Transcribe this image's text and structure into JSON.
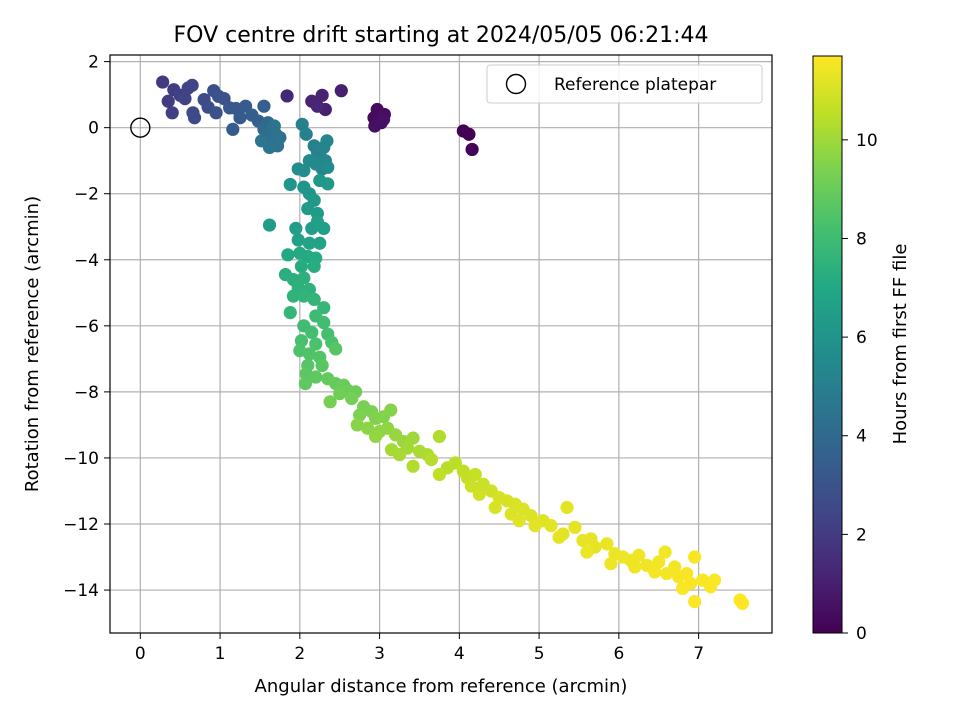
{
  "chart_data": {
    "type": "scatter",
    "title": "FOV centre drift starting at 2024/05/05 06:21:44",
    "xlabel": "Angular distance from reference (arcmin)",
    "ylabel": "Rotation from reference (arcmin)",
    "xlim": [
      -0.38,
      7.92
    ],
    "ylim": [
      -15.3,
      2.2
    ],
    "xticks": [
      0,
      1,
      2,
      3,
      4,
      5,
      6,
      7
    ],
    "yticks": [
      2,
      0,
      -2,
      -4,
      -6,
      -8,
      -10,
      -12,
      -14
    ],
    "grid": true,
    "legend": {
      "position": "top-right",
      "entries": [
        "Reference platepar"
      ]
    },
    "reference_point": {
      "x": 0,
      "y": 0
    },
    "colorbar": {
      "label": "Hours from first FF file",
      "range": [
        0,
        11.7
      ],
      "ticks": [
        0,
        2,
        4,
        6,
        8,
        10
      ],
      "colormap": "viridis"
    },
    "series": [
      {
        "values": [
          {
            "x": 4.05,
            "y": -0.1,
            "h": 0.0
          },
          {
            "x": 4.12,
            "y": -0.2,
            "h": 0.05
          },
          {
            "x": 4.16,
            "y": -0.66,
            "h": 0.1
          },
          {
            "x": 2.93,
            "y": 0.3,
            "h": 0.3
          },
          {
            "x": 2.97,
            "y": 0.55,
            "h": 0.35
          },
          {
            "x": 3.02,
            "y": 0.15,
            "h": 0.4
          },
          {
            "x": 3.06,
            "y": 0.4,
            "h": 0.45
          },
          {
            "x": 2.94,
            "y": 0.05,
            "h": 0.5
          },
          {
            "x": 3.05,
            "y": 0.25,
            "h": 0.55
          },
          {
            "x": 2.52,
            "y": 1.12,
            "h": 1.0
          },
          {
            "x": 2.32,
            "y": 0.55,
            "h": 1.05
          },
          {
            "x": 2.28,
            "y": 0.98,
            "h": 1.1
          },
          {
            "x": 2.15,
            "y": 0.8,
            "h": 1.15
          },
          {
            "x": 2.22,
            "y": 0.65,
            "h": 1.2
          },
          {
            "x": 1.84,
            "y": 0.96,
            "h": 1.3
          },
          {
            "x": 0.28,
            "y": 1.38,
            "h": 2.0
          },
          {
            "x": 0.35,
            "y": 0.8,
            "h": 2.05
          },
          {
            "x": 0.42,
            "y": 1.15,
            "h": 2.1
          },
          {
            "x": 0.4,
            "y": 0.45,
            "h": 2.15
          },
          {
            "x": 0.5,
            "y": 0.98,
            "h": 2.2
          },
          {
            "x": 0.56,
            "y": 0.88,
            "h": 2.25
          },
          {
            "x": 0.6,
            "y": 1.2,
            "h": 2.3
          },
          {
            "x": 0.65,
            "y": 1.28,
            "h": 2.35
          },
          {
            "x": 0.66,
            "y": 0.45,
            "h": 2.6
          },
          {
            "x": 0.68,
            "y": 0.3,
            "h": 2.65
          },
          {
            "x": 0.8,
            "y": 0.85,
            "h": 2.7
          },
          {
            "x": 0.85,
            "y": 0.62,
            "h": 2.75
          },
          {
            "x": 0.92,
            "y": 1.12,
            "h": 2.8
          },
          {
            "x": 0.98,
            "y": 0.95,
            "h": 2.85
          },
          {
            "x": 0.95,
            "y": 0.45,
            "h": 2.9
          },
          {
            "x": 1.05,
            "y": 0.88,
            "h": 2.95
          },
          {
            "x": 1.12,
            "y": 0.6,
            "h": 3.2
          },
          {
            "x": 1.2,
            "y": 0.58,
            "h": 3.25
          },
          {
            "x": 1.25,
            "y": 0.3,
            "h": 3.3
          },
          {
            "x": 1.32,
            "y": 0.65,
            "h": 3.35
          },
          {
            "x": 1.16,
            "y": -0.05,
            "h": 3.4
          },
          {
            "x": 1.4,
            "y": 0.38,
            "h": 3.45
          },
          {
            "x": 1.48,
            "y": 0.2,
            "h": 3.5
          },
          {
            "x": 1.55,
            "y": 0.65,
            "h": 3.55
          },
          {
            "x": 1.6,
            "y": 0.15,
            "h": 4.0
          },
          {
            "x": 1.55,
            "y": -0.05,
            "h": 4.05
          },
          {
            "x": 1.58,
            "y": -0.35,
            "h": 4.1
          },
          {
            "x": 1.62,
            "y": -0.15,
            "h": 4.15
          },
          {
            "x": 1.66,
            "y": -0.05,
            "h": 4.2
          },
          {
            "x": 1.65,
            "y": -0.45,
            "h": 4.25
          },
          {
            "x": 1.7,
            "y": -0.2,
            "h": 4.3
          },
          {
            "x": 1.72,
            "y": -0.55,
            "h": 4.35
          },
          {
            "x": 1.68,
            "y": 0.05,
            "h": 4.4
          },
          {
            "x": 1.75,
            "y": -0.3,
            "h": 4.45
          },
          {
            "x": 1.62,
            "y": -0.6,
            "h": 4.5
          },
          {
            "x": 1.52,
            "y": -0.4,
            "h": 4.55
          },
          {
            "x": 2.03,
            "y": 0.1,
            "h": 5.0
          },
          {
            "x": 2.08,
            "y": -0.2,
            "h": 5.05
          },
          {
            "x": 2.18,
            "y": -0.55,
            "h": 5.1
          },
          {
            "x": 2.22,
            "y": -0.72,
            "h": 5.15
          },
          {
            "x": 2.26,
            "y": -0.9,
            "h": 5.2
          },
          {
            "x": 2.3,
            "y": -0.6,
            "h": 5.25
          },
          {
            "x": 2.34,
            "y": -0.4,
            "h": 5.3
          },
          {
            "x": 2.32,
            "y": -1.0,
            "h": 5.35
          },
          {
            "x": 2.28,
            "y": -1.25,
            "h": 5.4
          },
          {
            "x": 2.2,
            "y": -1.1,
            "h": 5.45
          },
          {
            "x": 2.12,
            "y": -1.0,
            "h": 5.5
          },
          {
            "x": 2.35,
            "y": -1.2,
            "h": 5.55
          },
          {
            "x": 2.05,
            "y": -1.3,
            "h": 5.6
          },
          {
            "x": 1.98,
            "y": -1.25,
            "h": 5.65
          },
          {
            "x": 1.88,
            "y": -1.72,
            "h": 6.0
          },
          {
            "x": 2.05,
            "y": -1.8,
            "h": 6.05
          },
          {
            "x": 2.12,
            "y": -2.0,
            "h": 6.1
          },
          {
            "x": 2.25,
            "y": -1.6,
            "h": 6.15
          },
          {
            "x": 2.35,
            "y": -1.7,
            "h": 6.2
          },
          {
            "x": 2.18,
            "y": -2.2,
            "h": 6.25
          },
          {
            "x": 2.1,
            "y": -2.45,
            "h": 6.3
          },
          {
            "x": 2.22,
            "y": -2.6,
            "h": 6.35
          },
          {
            "x": 1.62,
            "y": -2.95,
            "h": 6.4
          },
          {
            "x": 1.95,
            "y": -3.05,
            "h": 6.45
          },
          {
            "x": 2.15,
            "y": -3.05,
            "h": 6.5
          },
          {
            "x": 2.22,
            "y": -2.85,
            "h": 6.55
          },
          {
            "x": 2.3,
            "y": -3.05,
            "h": 6.6
          },
          {
            "x": 1.98,
            "y": -3.4,
            "h": 6.65
          },
          {
            "x": 2.12,
            "y": -3.5,
            "h": 6.7
          },
          {
            "x": 2.25,
            "y": -3.5,
            "h": 6.75
          },
          {
            "x": 1.85,
            "y": -3.85,
            "h": 7.0
          },
          {
            "x": 2.0,
            "y": -3.8,
            "h": 7.05
          },
          {
            "x": 2.1,
            "y": -3.9,
            "h": 7.1
          },
          {
            "x": 2.2,
            "y": -3.95,
            "h": 7.15
          },
          {
            "x": 2.02,
            "y": -4.2,
            "h": 7.2
          },
          {
            "x": 2.18,
            "y": -4.2,
            "h": 7.25
          },
          {
            "x": 1.82,
            "y": -4.45,
            "h": 7.3
          },
          {
            "x": 1.92,
            "y": -4.6,
            "h": 7.35
          },
          {
            "x": 2.05,
            "y": -4.55,
            "h": 7.4
          },
          {
            "x": 1.98,
            "y": -4.85,
            "h": 7.45
          },
          {
            "x": 2.12,
            "y": -4.9,
            "h": 7.5
          },
          {
            "x": 1.92,
            "y": -5.1,
            "h": 7.55
          },
          {
            "x": 2.05,
            "y": -5.1,
            "h": 7.6
          },
          {
            "x": 2.18,
            "y": -5.2,
            "h": 7.65
          },
          {
            "x": 1.88,
            "y": -5.6,
            "h": 7.7
          },
          {
            "x": 2.3,
            "y": -5.45,
            "h": 7.75
          },
          {
            "x": 2.2,
            "y": -5.7,
            "h": 8.0
          },
          {
            "x": 2.05,
            "y": -6.0,
            "h": 8.05
          },
          {
            "x": 2.3,
            "y": -5.9,
            "h": 8.1
          },
          {
            "x": 2.15,
            "y": -6.2,
            "h": 8.15
          },
          {
            "x": 2.35,
            "y": -6.25,
            "h": 8.2
          },
          {
            "x": 2.02,
            "y": -6.45,
            "h": 8.25
          },
          {
            "x": 2.2,
            "y": -6.55,
            "h": 8.3
          },
          {
            "x": 2.4,
            "y": -6.5,
            "h": 8.35
          },
          {
            "x": 2.0,
            "y": -6.75,
            "h": 8.4
          },
          {
            "x": 2.12,
            "y": -6.85,
            "h": 8.45
          },
          {
            "x": 2.25,
            "y": -6.95,
            "h": 8.5
          },
          {
            "x": 2.45,
            "y": -6.7,
            "h": 8.55
          },
          {
            "x": 2.1,
            "y": -7.2,
            "h": 8.6
          },
          {
            "x": 2.28,
            "y": -7.2,
            "h": 8.65
          },
          {
            "x": 2.08,
            "y": -7.45,
            "h": 8.7
          },
          {
            "x": 2.2,
            "y": -7.55,
            "h": 8.75
          },
          {
            "x": 2.07,
            "y": -7.75,
            "h": 8.8
          },
          {
            "x": 2.35,
            "y": -7.6,
            "h": 8.9
          },
          {
            "x": 2.45,
            "y": -7.75,
            "h": 8.95
          },
          {
            "x": 2.55,
            "y": -7.8,
            "h": 9.0
          },
          {
            "x": 2.6,
            "y": -7.95,
            "h": 9.05
          },
          {
            "x": 2.7,
            "y": -8.0,
            "h": 9.1
          },
          {
            "x": 2.5,
            "y": -8.05,
            "h": 9.15
          },
          {
            "x": 2.65,
            "y": -8.2,
            "h": 9.2
          },
          {
            "x": 2.38,
            "y": -8.3,
            "h": 9.25
          },
          {
            "x": 2.8,
            "y": -8.45,
            "h": 9.3
          },
          {
            "x": 2.9,
            "y": -8.6,
            "h": 9.35
          },
          {
            "x": 2.75,
            "y": -8.7,
            "h": 9.4
          },
          {
            "x": 2.95,
            "y": -8.8,
            "h": 9.45
          },
          {
            "x": 3.05,
            "y": -8.75,
            "h": 9.5
          },
          {
            "x": 3.14,
            "y": -8.55,
            "h": 9.55
          },
          {
            "x": 2.72,
            "y": -9.0,
            "h": 9.6
          },
          {
            "x": 2.85,
            "y": -9.1,
            "h": 9.65
          },
          {
            "x": 3.0,
            "y": -9.2,
            "h": 9.7
          },
          {
            "x": 3.1,
            "y": -9.1,
            "h": 9.75
          },
          {
            "x": 2.95,
            "y": -9.35,
            "h": 9.8
          },
          {
            "x": 3.2,
            "y": -9.3,
            "h": 9.85
          },
          {
            "x": 3.3,
            "y": -9.5,
            "h": 9.9
          },
          {
            "x": 3.42,
            "y": -9.4,
            "h": 10.0
          },
          {
            "x": 3.35,
            "y": -9.7,
            "h": 10.05
          },
          {
            "x": 3.15,
            "y": -9.75,
            "h": 10.1
          },
          {
            "x": 3.25,
            "y": -9.9,
            "h": 10.15
          },
          {
            "x": 3.5,
            "y": -9.8,
            "h": 10.2
          },
          {
            "x": 3.6,
            "y": -9.9,
            "h": 10.25
          },
          {
            "x": 3.75,
            "y": -9.35,
            "h": 10.3
          },
          {
            "x": 3.42,
            "y": -10.25,
            "h": 10.35
          },
          {
            "x": 3.65,
            "y": -10.05,
            "h": 10.4
          },
          {
            "x": 3.85,
            "y": -10.3,
            "h": 10.45
          },
          {
            "x": 3.95,
            "y": -10.15,
            "h": 10.5
          },
          {
            "x": 4.05,
            "y": -10.4,
            "h": 10.55
          },
          {
            "x": 3.75,
            "y": -10.5,
            "h": 10.6
          },
          {
            "x": 4.1,
            "y": -10.6,
            "h": 10.65
          },
          {
            "x": 4.2,
            "y": -10.5,
            "h": 10.7
          },
          {
            "x": 4.3,
            "y": -10.8,
            "h": 10.75
          },
          {
            "x": 4.15,
            "y": -10.85,
            "h": 10.8
          },
          {
            "x": 4.4,
            "y": -11.0,
            "h": 10.85
          },
          {
            "x": 4.25,
            "y": -11.1,
            "h": 10.9
          },
          {
            "x": 4.5,
            "y": -11.2,
            "h": 10.95
          },
          {
            "x": 4.6,
            "y": -11.3,
            "h": 11.0
          },
          {
            "x": 4.45,
            "y": -11.5,
            "h": 11.05
          },
          {
            "x": 4.7,
            "y": -11.4,
            "h": 11.05
          },
          {
            "x": 4.8,
            "y": -11.55,
            "h": 11.1
          },
          {
            "x": 4.65,
            "y": -11.7,
            "h": 11.1
          },
          {
            "x": 4.9,
            "y": -11.75,
            "h": 11.1
          },
          {
            "x": 4.75,
            "y": -11.9,
            "h": 11.15
          },
          {
            "x": 5.05,
            "y": -11.9,
            "h": 11.15
          },
          {
            "x": 5.15,
            "y": -12.05,
            "h": 11.2
          },
          {
            "x": 4.95,
            "y": -12.05,
            "h": 11.2
          },
          {
            "x": 5.3,
            "y": -12.3,
            "h": 11.2
          },
          {
            "x": 5.35,
            "y": -11.5,
            "h": 11.25
          },
          {
            "x": 5.45,
            "y": -12.1,
            "h": 11.25
          },
          {
            "x": 5.25,
            "y": -12.4,
            "h": 11.25
          },
          {
            "x": 5.55,
            "y": -12.5,
            "h": 11.3
          },
          {
            "x": 5.65,
            "y": -12.45,
            "h": 11.3
          },
          {
            "x": 5.7,
            "y": -12.7,
            "h": 11.3
          },
          {
            "x": 5.85,
            "y": -12.6,
            "h": 11.35
          },
          {
            "x": 5.6,
            "y": -12.85,
            "h": 11.35
          },
          {
            "x": 5.95,
            "y": -12.9,
            "h": 11.35
          },
          {
            "x": 6.05,
            "y": -13.0,
            "h": 11.4
          },
          {
            "x": 5.9,
            "y": -13.2,
            "h": 11.4
          },
          {
            "x": 6.15,
            "y": -13.1,
            "h": 11.4
          },
          {
            "x": 6.25,
            "y": -12.95,
            "h": 11.45
          },
          {
            "x": 6.2,
            "y": -13.3,
            "h": 11.45
          },
          {
            "x": 6.35,
            "y": -13.25,
            "h": 11.45
          },
          {
            "x": 6.5,
            "y": -13.15,
            "h": 11.5
          },
          {
            "x": 6.45,
            "y": -13.45,
            "h": 11.5
          },
          {
            "x": 6.58,
            "y": -12.85,
            "h": 11.5
          },
          {
            "x": 6.6,
            "y": -13.5,
            "h": 11.55
          },
          {
            "x": 6.7,
            "y": -13.3,
            "h": 11.55
          },
          {
            "x": 6.75,
            "y": -13.6,
            "h": 11.55
          },
          {
            "x": 6.85,
            "y": -13.5,
            "h": 11.6
          },
          {
            "x": 6.95,
            "y": -13.0,
            "h": 11.6
          },
          {
            "x": 6.9,
            "y": -13.8,
            "h": 11.6
          },
          {
            "x": 7.05,
            "y": -13.7,
            "h": 11.62
          },
          {
            "x": 6.8,
            "y": -13.95,
            "h": 11.62
          },
          {
            "x": 7.15,
            "y": -13.9,
            "h": 11.64
          },
          {
            "x": 7.2,
            "y": -13.7,
            "h": 11.64
          },
          {
            "x": 6.95,
            "y": -14.35,
            "h": 11.66
          },
          {
            "x": 7.52,
            "y": -14.3,
            "h": 11.68
          },
          {
            "x": 7.55,
            "y": -14.4,
            "h": 11.7
          }
        ]
      }
    ]
  }
}
